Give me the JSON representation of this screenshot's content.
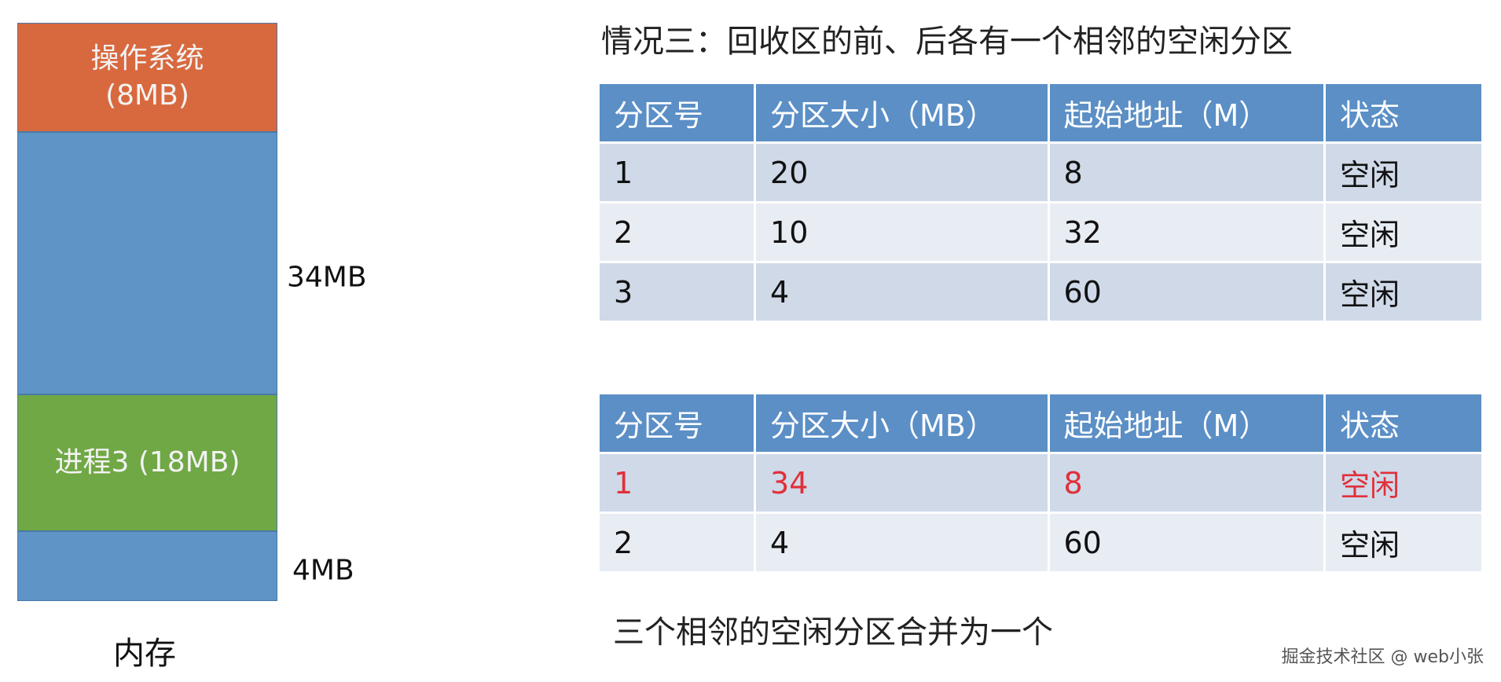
{
  "memory": {
    "blocks": [
      {
        "label": "操作系统\n(8MB)",
        "color": "#d8693f"
      },
      {
        "label": "",
        "color": "#5f94c7"
      },
      {
        "label": "进程3 (18MB)",
        "color": "#70a845"
      },
      {
        "label": "",
        "color": "#5f94c7"
      }
    ],
    "os_label_line1": "操作系统",
    "os_label_line2": "(8MB)",
    "process_label": "进程3 (18MB)",
    "free_label_1": "34MB",
    "free_label_2": "4MB",
    "caption": "内存"
  },
  "title": "情况三：回收区的前、后各有一个相邻的空闲分区",
  "headers": [
    "分区号",
    "分区大小（MB）",
    "起始地址（M）",
    "状态"
  ],
  "table_before": [
    [
      "1",
      "20",
      "8",
      "空闲"
    ],
    [
      "2",
      "10",
      "32",
      "空闲"
    ],
    [
      "3",
      "4",
      "60",
      "空闲"
    ]
  ],
  "table_after": [
    [
      "1",
      "34",
      "8",
      "空闲"
    ],
    [
      "2",
      "4",
      "60",
      "空闲"
    ]
  ],
  "highlight_color": "#e0303a",
  "footer": "三个相邻的空闲分区合并为一个",
  "watermark": "掘金技术社区 @ web小张"
}
